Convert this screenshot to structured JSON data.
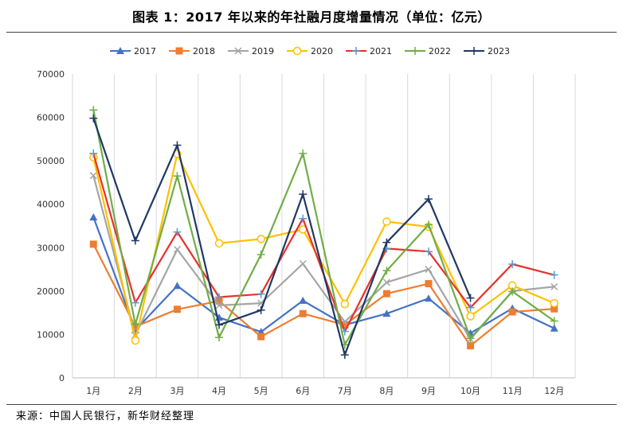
{
  "header": {
    "title": "图表 1：2017 年以来的年社融月度增量情况（单位：亿元）"
  },
  "footer": {
    "source": "来源：中国人民银行，新华财经整理"
  },
  "chart_data": {
    "type": "line",
    "title": "图表 1：2017 年以来的年社融月度增量情况（单位：亿元）",
    "xlabel": "",
    "ylabel": "",
    "categories": [
      "1月",
      "2月",
      "3月",
      "4月",
      "5月",
      "6月",
      "7月",
      "8月",
      "9月",
      "10月",
      "11月",
      "12月"
    ],
    "ylim": [
      0,
      70000
    ],
    "yticks": [
      0,
      10000,
      20000,
      30000,
      40000,
      50000,
      60000,
      70000
    ],
    "grid": "vertical",
    "legend_position": "top",
    "series": [
      {
        "name": "2017",
        "color": "#4472C4",
        "marker": "triangle",
        "values": [
          37000,
          11000,
          21200,
          13900,
          10600,
          17800,
          12200,
          14800,
          18300,
          10300,
          16000,
          11400
        ]
      },
      {
        "name": "2018",
        "color": "#ED7D31",
        "marker": "square",
        "values": [
          30800,
          11800,
          15800,
          17700,
          9500,
          14800,
          12200,
          19400,
          21700,
          7400,
          15200,
          15900
        ]
      },
      {
        "name": "2019",
        "color": "#A5A5A5",
        "marker": "x",
        "values": [
          46600,
          9900,
          29600,
          16700,
          17200,
          26300,
          12900,
          22000,
          25000,
          8900,
          20000,
          21000
        ]
      },
      {
        "name": "2020",
        "color": "#FFC000",
        "marker": "circle",
        "values": [
          50800,
          8600,
          51600,
          31000,
          32000,
          34200,
          17000,
          36000,
          34800,
          14200,
          21300,
          17200
        ]
      },
      {
        "name": "2021",
        "color": "#E8312A",
        "marker": "plus",
        "values": [
          51700,
          17300,
          33600,
          18600,
          19300,
          36700,
          10700,
          29800,
          29100,
          16200,
          26200,
          23700
        ]
      },
      {
        "name": "2022",
        "color": "#70AD47",
        "marker": "plus",
        "values": [
          61700,
          12300,
          46500,
          9300,
          28400,
          51700,
          7600,
          24700,
          35300,
          9100,
          19900,
          13100
        ]
      },
      {
        "name": "2023",
        "color": "#203864",
        "marker": "plus",
        "values": [
          59800,
          31600,
          53600,
          12200,
          15600,
          42300,
          5300,
          31200,
          41200,
          18400,
          null,
          null
        ]
      }
    ],
    "series_visual": {
      "2017": {
        "marker_color": "#4472C4"
      },
      "2018": {
        "marker_color": "#ED7D31"
      },
      "2019": {
        "marker_color": "#A5A5A5"
      },
      "2020": {
        "marker_color": "#FFC000"
      },
      "2021": {
        "marker_color": "#5B9BD5"
      },
      "2022": {
        "marker_color": "#70AD47"
      },
      "2023": {
        "marker_color": "#203864"
      }
    }
  }
}
